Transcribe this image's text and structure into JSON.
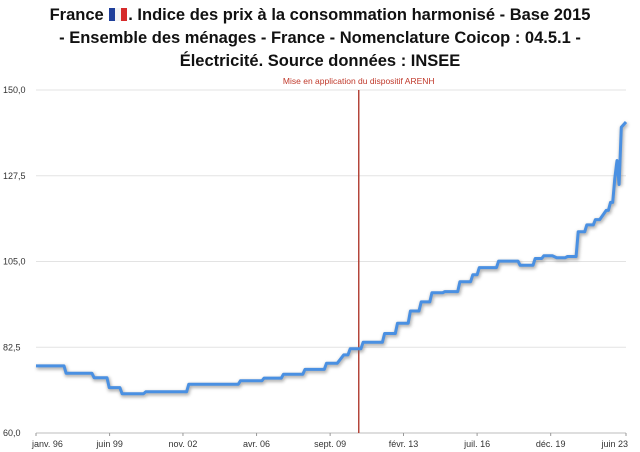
{
  "chart_data": {
    "type": "line",
    "title_parts": {
      "before_flag": "France",
      "flag": "french-flag",
      "line1_rest": ". Indice des prix à la consommation harmonisé - Base 2015",
      "line2": "- Ensemble des ménages - France - Nomenclature Coicop : 04.5.1 -",
      "line3": "Électricité. Source données : INSEE"
    },
    "xlabel": "",
    "ylabel": "",
    "ylim": [
      60,
      150
    ],
    "yticks": [
      "150,0",
      "127,5",
      "105,0",
      "82,5",
      "60,0"
    ],
    "ytick_values": [
      150,
      127.5,
      105,
      82.5,
      60
    ],
    "xlim": [
      1996.0,
      2023.42
    ],
    "xticks": [
      "janv. 96",
      "juin 99",
      "nov. 02",
      "avr. 06",
      "sept. 09",
      "févr. 13",
      "juil. 16",
      "déc. 19",
      "juin 23"
    ],
    "xtick_values": [
      1996.0,
      1999.42,
      2002.83,
      2006.25,
      2009.67,
      2013.08,
      2016.5,
      2019.92,
      2023.42
    ],
    "grid": "horizontal",
    "legend": "none",
    "series_color": "#4a90e2",
    "annotation": {
      "label": "Mise en application du  dispositif ARENH",
      "x": 2011.0,
      "color": "#b03a2e"
    },
    "series": [
      {
        "x": [
          1996.0,
          1997.3,
          1997.4,
          1998.6,
          1998.7,
          1999.3,
          1999.4,
          1999.9,
          2000.0,
          2001.0,
          2001.1,
          2003.0,
          2003.1,
          2005.4,
          2005.5,
          2006.5,
          2006.6,
          2007.4,
          2007.5,
          2008.4,
          2008.5,
          2009.4,
          2009.5,
          2010.0,
          2010.3,
          2010.5,
          2010.6,
          2011.1,
          2011.2,
          2012.1,
          2012.2,
          2012.7,
          2012.8,
          2013.3,
          2013.4,
          2013.8,
          2013.9,
          2014.3,
          2014.4,
          2014.9,
          2015.0,
          2015.6,
          2015.7,
          2016.2,
          2016.3,
          2016.5,
          2016.6,
          2017.4,
          2017.5,
          2018.4,
          2018.5,
          2019.1,
          2019.2,
          2019.5,
          2019.6,
          2020.0,
          2020.2,
          2020.6,
          2020.7,
          2021.1,
          2021.2,
          2021.5,
          2021.6,
          2021.9,
          2022.0,
          2022.2,
          2022.5,
          2022.6,
          2022.7,
          2022.8,
          2022.9,
          2023.0,
          2023.1,
          2023.2,
          2023.42
        ],
        "y": [
          77.6,
          77.6,
          75.7,
          75.7,
          74.5,
          74.5,
          71.9,
          71.9,
          70.3,
          70.3,
          70.8,
          70.8,
          72.8,
          72.8,
          73.7,
          73.7,
          74.4,
          74.4,
          75.4,
          75.4,
          76.7,
          76.7,
          78.3,
          78.3,
          80.5,
          80.5,
          82.1,
          82.1,
          83.8,
          83.8,
          86.1,
          86.1,
          88.8,
          88.8,
          92.0,
          92.0,
          94.4,
          94.4,
          96.8,
          96.8,
          97.1,
          97.1,
          99.7,
          99.7,
          101.5,
          101.5,
          103.4,
          103.4,
          105.1,
          105.1,
          104.0,
          104.0,
          105.8,
          105.8,
          106.5,
          106.5,
          106.0,
          106.0,
          106.3,
          106.3,
          112.8,
          112.8,
          114.6,
          114.6,
          116.0,
          116.0,
          118.4,
          118.4,
          120.5,
          120.5,
          126.8,
          131.5,
          125.2,
          140.2,
          141.6
        ]
      }
    ]
  }
}
